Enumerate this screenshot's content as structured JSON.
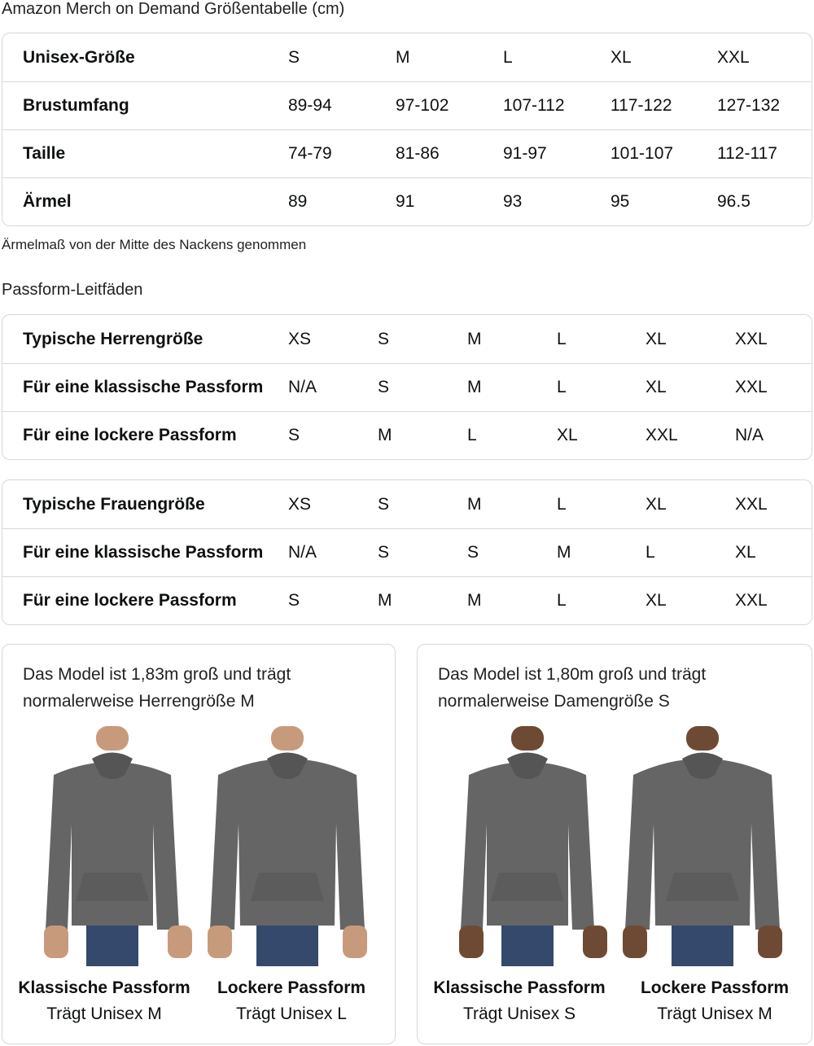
{
  "title": "Amazon Merch on Demand Größentabelle (cm)",
  "size_table": {
    "rows": [
      [
        "Unisex-Größe",
        "S",
        "M",
        "L",
        "XL",
        "XXL"
      ],
      [
        "Brustumfang",
        "89-94",
        "97-102",
        "107-112",
        "117-122",
        "127-132"
      ],
      [
        "Taille",
        "74-79",
        "81-86",
        "91-97",
        "101-107",
        "112-117"
      ],
      [
        "Ärmel",
        "89",
        "91",
        "93",
        "95",
        "96.5"
      ]
    ]
  },
  "note": "Ärmelmaß von der Mitte des Nackens genommen",
  "fit_title": "Passform-Leitfäden",
  "men_table": {
    "rows": [
      [
        "Typische Herrengröße",
        "XS",
        "S",
        "M",
        "L",
        "XL",
        "XXL"
      ],
      [
        "Für eine klassische Passform",
        "N/A",
        "S",
        "M",
        "L",
        "XL",
        "XXL"
      ],
      [
        "Für eine lockere Passform",
        "S",
        "M",
        "L",
        "XL",
        "XXL",
        "N/A"
      ]
    ]
  },
  "women_table": {
    "rows": [
      [
        "Typische Frauengröße",
        "XS",
        "S",
        "M",
        "L",
        "XL",
        "XXL"
      ],
      [
        "Für eine klassische Passform",
        "N/A",
        "S",
        "S",
        "M",
        "L",
        "XL"
      ],
      [
        "Für eine lockere Passform",
        "S",
        "M",
        "M",
        "L",
        "XL",
        "XXL"
      ]
    ]
  },
  "cards": [
    {
      "caption_line1": "Das Model ist 1,83m groß und trägt",
      "caption_line2": "normalerweise Herrengröße M",
      "figures": [
        {
          "fit": "Klassische Passform",
          "wears": "Trägt Unisex M"
        },
        {
          "fit": "Lockere Passform",
          "wears": "Trägt Unisex L"
        }
      ]
    },
    {
      "caption_line1": "Das Model ist 1,80m groß und trägt",
      "caption_line2": "normalerweise Damengröße S",
      "figures": [
        {
          "fit": "Klassische Passform",
          "wears": "Trägt Unisex S"
        },
        {
          "fit": "Lockere Passform",
          "wears": "Trägt Unisex M"
        }
      ]
    }
  ],
  "colors": {
    "hoodie": "#656565",
    "jeans": "#34496b",
    "border": "#d5d9d9"
  }
}
